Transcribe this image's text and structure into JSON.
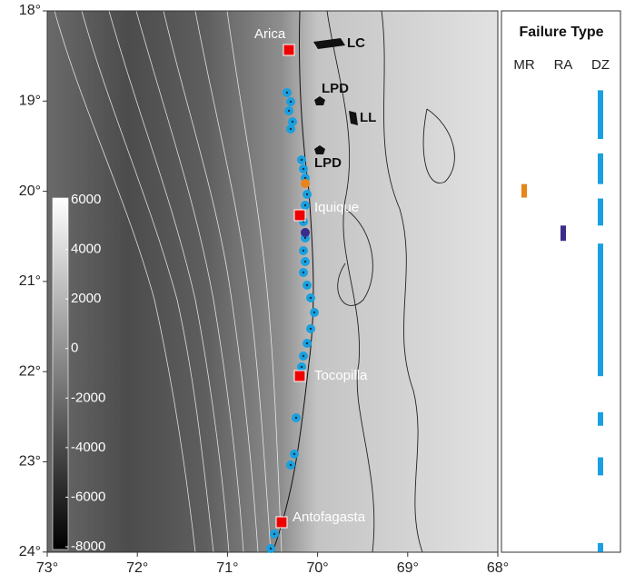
{
  "map": {
    "lat_ticks": [
      {
        "value": 18,
        "label": "18°"
      },
      {
        "value": 19,
        "label": "19°"
      },
      {
        "value": 20,
        "label": "20°"
      },
      {
        "value": 21,
        "label": "21°"
      },
      {
        "value": 22,
        "label": "22°"
      },
      {
        "value": 23,
        "label": "23°"
      },
      {
        "value": 24,
        "label": "24°"
      }
    ],
    "lon_ticks": [
      {
        "value": 73,
        "label": "73°"
      },
      {
        "value": 72,
        "label": "72°"
      },
      {
        "value": 71,
        "label": "71°"
      },
      {
        "value": 70,
        "label": "70°"
      },
      {
        "value": 69,
        "label": "69°"
      },
      {
        "value": 68,
        "label": "68°"
      }
    ],
    "cities": [
      "Arica",
      "Iquique",
      "Tocopilla",
      "Antofagasta"
    ],
    "features": [
      "LC",
      "LPD",
      "LL",
      "LPD"
    ],
    "colorbar": {
      "range": [
        6000,
        -8000
      ],
      "ticks": [
        6000,
        4000,
        2000,
        0,
        -2000,
        -4000,
        -6000,
        -8000
      ]
    }
  },
  "failure_panel": {
    "title": "Failure Type",
    "columns": [
      {
        "label": "MR",
        "color": "#e8841a",
        "segments": [
          [
            19.92,
            20.07
          ]
        ]
      },
      {
        "label": "RA",
        "color": "#3a2c8c",
        "segments": [
          [
            20.38,
            20.55
          ]
        ]
      },
      {
        "label": "DZ",
        "color": "#1aa0e0",
        "segments": [
          [
            18.88,
            19.42
          ],
          [
            19.58,
            19.92
          ],
          [
            20.08,
            20.38
          ],
          [
            20.58,
            22.05
          ],
          [
            22.45,
            22.6
          ],
          [
            22.95,
            23.15
          ],
          [
            23.9,
            24.0
          ]
        ]
      }
    ]
  }
}
